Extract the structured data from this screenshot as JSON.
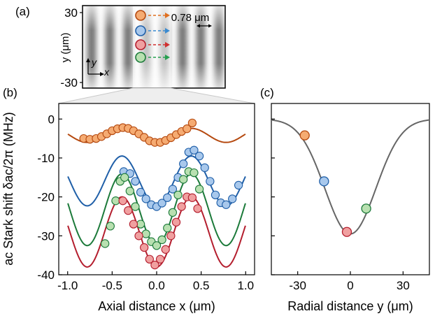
{
  "figure": {
    "panel_labels": [
      "(a)",
      "(b)",
      "(c)"
    ],
    "panel_a": {
      "y_ticks": [
        "30",
        "-30"
      ],
      "y_axis_title": "y (μm)",
      "inset_axes": {
        "x": "x",
        "y": "y"
      },
      "spacing_label": "0.78 μm"
    },
    "colors": {
      "orange_fill": "#f5ab72",
      "orange_line": "#b5490f",
      "blue_fill": "#a8c8ec",
      "blue_line": "#1f5fa8",
      "green_fill": "#b8e0b0",
      "green_line": "#1c7a3a",
      "red_fill": "#f0a0a0",
      "red_line": "#b41e2e",
      "arrow_orange": "#e07020",
      "arrow_blue": "#3a8ad0",
      "arrow_red": "#d03030",
      "arrow_green": "#28a050",
      "gaussian_line": "#666666"
    }
  },
  "chart_data": [
    {
      "panel": "(b)",
      "type": "scatter",
      "xlabel": "Axial distance x (μm)",
      "ylabel": "ac Stark shift δac/2π (MHz)",
      "xlim": [
        -1.1,
        1.1
      ],
      "ylim": [
        -40,
        4
      ],
      "xticks": [
        -1.0,
        -0.5,
        0.0,
        0.5,
        1.0
      ],
      "xtick_labels": [
        "-1.0",
        "-0.5",
        "0.0",
        "0.5",
        "1.0"
      ],
      "yticks": [
        0,
        -10,
        -20,
        -30,
        -40
      ],
      "ytick_labels": [
        "0",
        "-10",
        "-20",
        "-30",
        "-40"
      ],
      "grid": false,
      "series": [
        {
          "color": "orange",
          "fit": {
            "offset": -4.2,
            "amplitude": 1.8,
            "period": 0.78,
            "phase": 0.39
          },
          "points": [
            {
              "x": -0.82,
              "y": -5.0
            },
            {
              "x": -0.75,
              "y": -5.2
            },
            {
              "x": -0.68,
              "y": -5.0
            },
            {
              "x": -0.62,
              "y": -4.5
            },
            {
              "x": -0.56,
              "y": -3.8
            },
            {
              "x": -0.5,
              "y": -3.0
            },
            {
              "x": -0.44,
              "y": -2.5
            },
            {
              "x": -0.38,
              "y": -2.2
            },
            {
              "x": -0.32,
              "y": -2.4
            },
            {
              "x": -0.26,
              "y": -3.0
            },
            {
              "x": -0.2,
              "y": -3.8
            },
            {
              "x": -0.14,
              "y": -4.7
            },
            {
              "x": -0.08,
              "y": -5.6
            },
            {
              "x": -0.02,
              "y": -6.0
            },
            {
              "x": 0.04,
              "y": -6.0
            },
            {
              "x": 0.1,
              "y": -5.5
            },
            {
              "x": 0.16,
              "y": -4.8
            },
            {
              "x": 0.22,
              "y": -4.0
            },
            {
              "x": 0.28,
              "y": -3.2
            },
            {
              "x": 0.34,
              "y": -2.5
            },
            {
              "x": 0.4,
              "y": -1.0
            }
          ]
        },
        {
          "color": "blue",
          "fit": {
            "offset": -15.9,
            "amplitude": 6.4,
            "period": 0.78,
            "phase": 0.39
          },
          "points": [
            {
              "x": -0.37,
              "y": -13.5
            },
            {
              "x": -0.3,
              "y": -14.0
            },
            {
              "x": -0.24,
              "y": -16.0
            },
            {
              "x": -0.18,
              "y": -18.8
            },
            {
              "x": -0.12,
              "y": -20.5
            },
            {
              "x": -0.06,
              "y": -22.0
            },
            {
              "x": 0.0,
              "y": -22.5
            },
            {
              "x": 0.06,
              "y": -21.6
            },
            {
              "x": 0.12,
              "y": -20.2
            },
            {
              "x": 0.18,
              "y": -18.0
            },
            {
              "x": 0.24,
              "y": -15.0
            },
            {
              "x": 0.3,
              "y": -11.5
            },
            {
              "x": 0.36,
              "y": -8.5
            },
            {
              "x": 0.42,
              "y": -8.0
            },
            {
              "x": 0.48,
              "y": -9.5
            },
            {
              "x": 0.54,
              "y": -12.5
            },
            {
              "x": 0.6,
              "y": -16.0
            },
            {
              "x": 0.66,
              "y": -19.5
            },
            {
              "x": 0.72,
              "y": -21.5
            },
            {
              "x": 0.78,
              "y": -22.0
            },
            {
              "x": 0.85,
              "y": -20.5
            },
            {
              "x": 0.92,
              "y": -17.0
            }
          ]
        },
        {
          "color": "green",
          "fit": {
            "offset": -23.3,
            "amplitude": 9.2,
            "period": 0.78,
            "phase": 0.39
          },
          "points": [
            {
              "x": -0.58,
              "y": -32.0
            },
            {
              "x": -0.52,
              "y": -27.5
            },
            {
              "x": -0.46,
              "y": -21.0
            },
            {
              "x": -0.41,
              "y": -16.0
            },
            {
              "x": -0.36,
              "y": -15.0
            },
            {
              "x": -0.3,
              "y": -18.5
            },
            {
              "x": -0.24,
              "y": -22.5
            },
            {
              "x": -0.18,
              "y": -27.0
            },
            {
              "x": -0.12,
              "y": -29.5
            },
            {
              "x": -0.06,
              "y": -31.5
            },
            {
              "x": 0.0,
              "y": -32.5
            },
            {
              "x": 0.06,
              "y": -31.0
            },
            {
              "x": 0.12,
              "y": -28.0
            },
            {
              "x": 0.18,
              "y": -24.0
            },
            {
              "x": 0.24,
              "y": -19.5
            },
            {
              "x": 0.3,
              "y": -15.5
            },
            {
              "x": 0.36,
              "y": -13.5
            },
            {
              "x": 0.42,
              "y": -13.8
            },
            {
              "x": 0.48,
              "y": -18.0
            }
          ]
        },
        {
          "color": "red",
          "fit": {
            "offset": -29.0,
            "amplitude": 9.0,
            "period": 0.78,
            "phase": 0.39
          },
          "points": [
            {
              "x": -0.38,
              "y": -21.0
            },
            {
              "x": -0.32,
              "y": -23.5
            },
            {
              "x": -0.26,
              "y": -27.0
            },
            {
              "x": -0.2,
              "y": -30.0
            },
            {
              "x": -0.14,
              "y": -33.0
            },
            {
              "x": -0.08,
              "y": -36.0
            },
            {
              "x": -0.02,
              "y": -37.5
            },
            {
              "x": 0.04,
              "y": -36.0
            },
            {
              "x": 0.1,
              "y": -33.5
            },
            {
              "x": 0.16,
              "y": -30.0
            },
            {
              "x": 0.22,
              "y": -26.5
            },
            {
              "x": 0.28,
              "y": -22.5
            },
            {
              "x": 0.34,
              "y": -20.0
            },
            {
              "x": 0.4,
              "y": -20.2
            },
            {
              "x": 0.46,
              "y": -23.0
            }
          ]
        }
      ]
    },
    {
      "panel": "(c)",
      "type": "line",
      "xlabel": "Radial distance y (μm)",
      "xlim": [
        -45,
        45
      ],
      "ylim": [
        -40,
        4
      ],
      "xticks": [
        -30,
        0,
        30
      ],
      "xtick_labels": [
        "-30",
        "0",
        "30"
      ],
      "grid": false,
      "curve": {
        "amplitude": -29.5,
        "center": 0,
        "sigma": 14.5
      },
      "points": [
        {
          "x": -26,
          "y": -4.2,
          "color": "orange"
        },
        {
          "x": -15,
          "y": -16.0,
          "color": "blue"
        },
        {
          "x": -2,
          "y": -29.0,
          "color": "red"
        },
        {
          "x": 9,
          "y": -23.0,
          "color": "green"
        }
      ]
    }
  ]
}
